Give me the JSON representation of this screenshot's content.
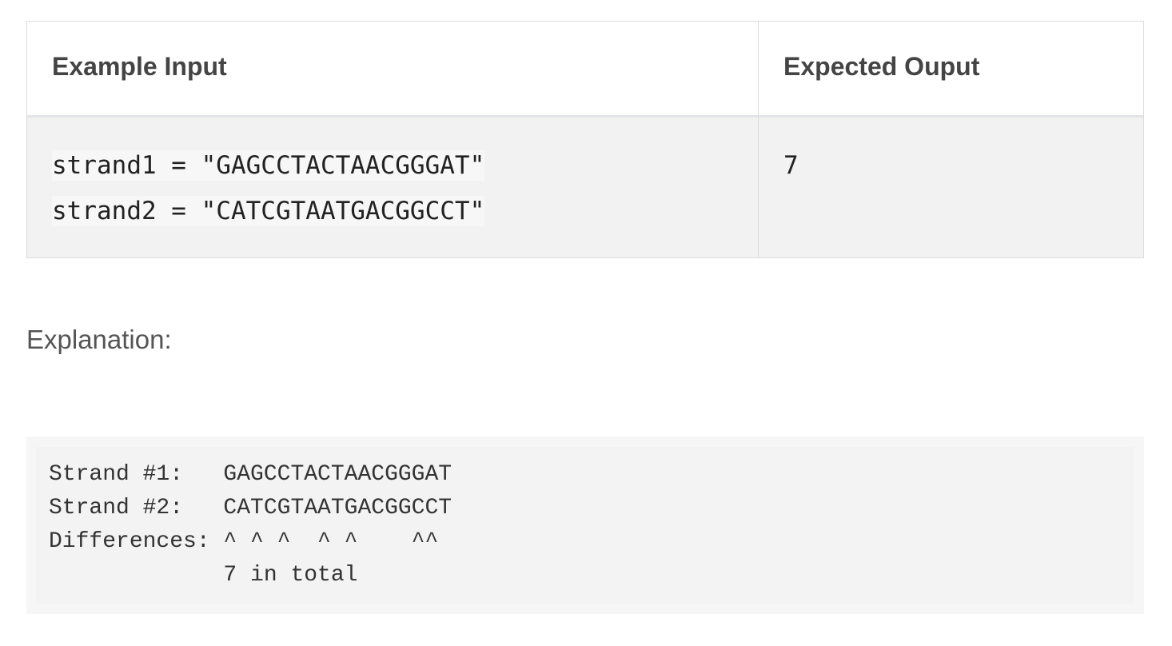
{
  "table": {
    "headers": [
      "Example Input",
      "Expected Ouput"
    ],
    "rows": [
      [
        [
          "strand1 = \"GAGCCTACTAACGGGAT\"",
          "strand2 = \"CATCGTAATGACGGCCT\""
        ],
        "7"
      ]
    ]
  },
  "explanation": {
    "label": "Explanation:",
    "code": [
      "Strand #1:   GAGCCTACTAACGGGAT",
      "Strand #2:   CATCGTAATGACGGCCT",
      "Differences: ^ ^ ^  ^ ^    ^^",
      "             7 in total"
    ]
  }
}
